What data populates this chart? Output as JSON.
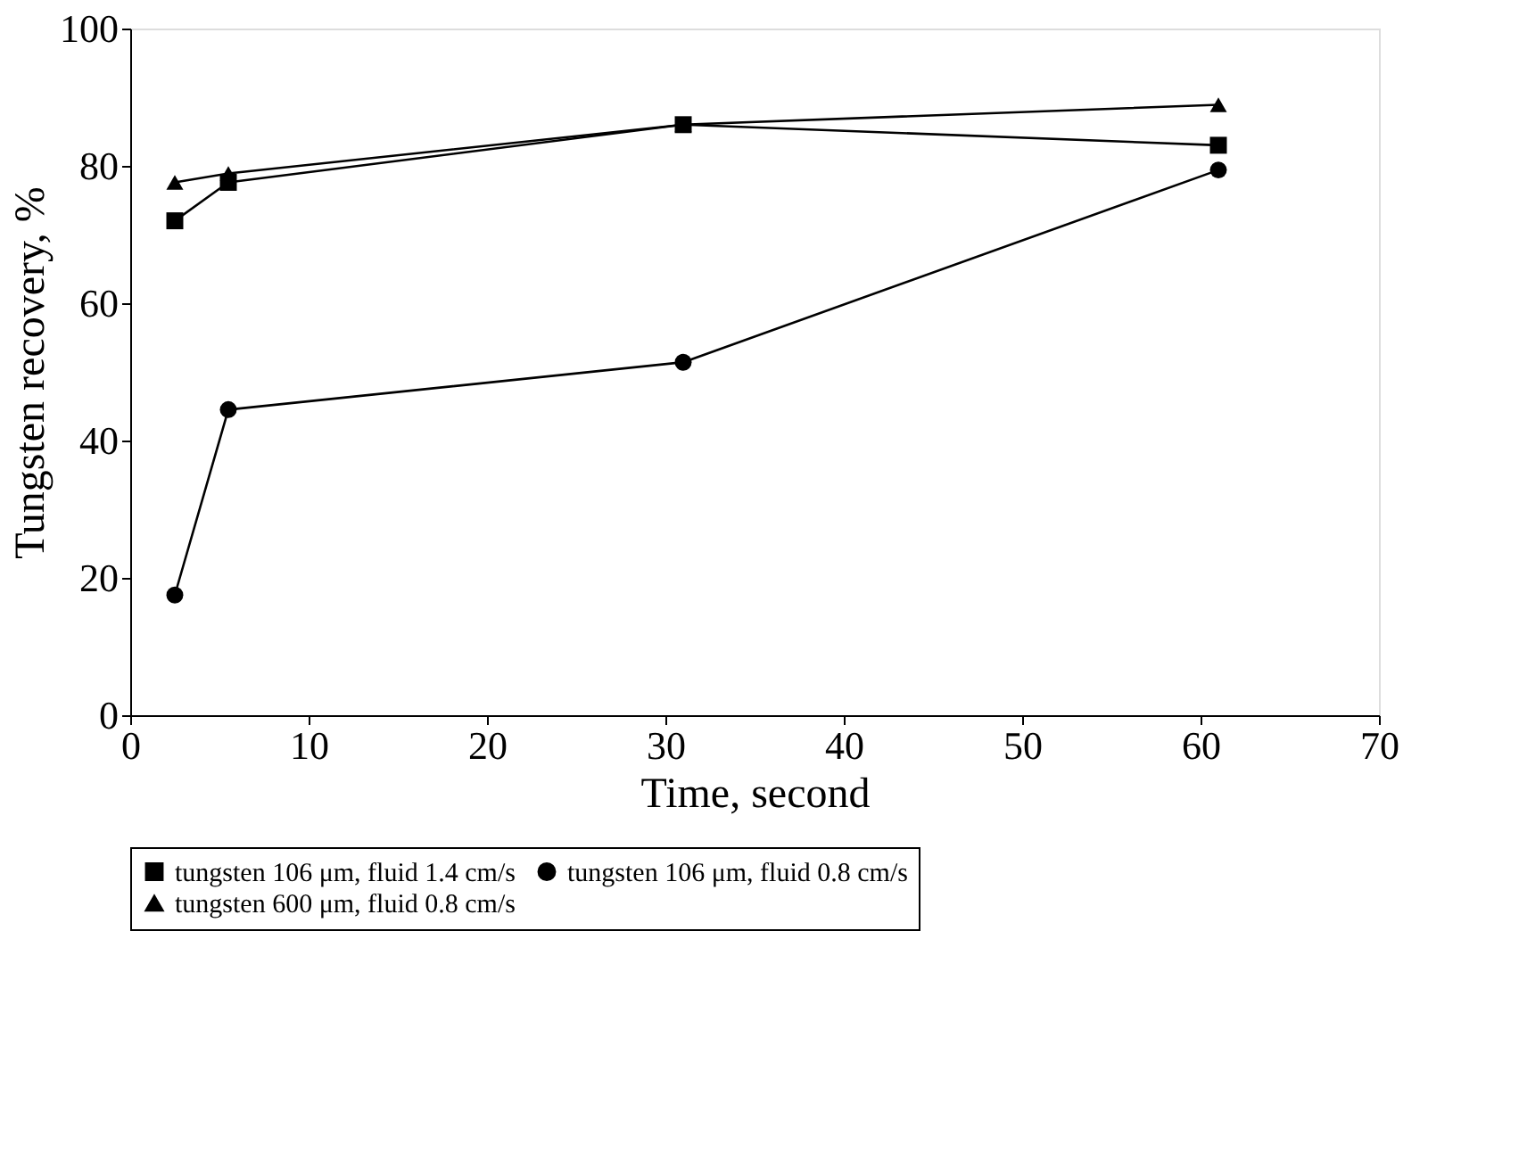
{
  "chart_data": {
    "type": "line",
    "xlabel": "Time, second",
    "ylabel": "Tungsten recovery,  %",
    "x": [
      2.5,
      5.5,
      31,
      61
    ],
    "series": [
      {
        "name": "tungsten 106 μm, fluid 1.4 cm/s",
        "color": "#000000",
        "marker": "square",
        "values": [
          72,
          77.6,
          86,
          83
        ]
      },
      {
        "name": "tungsten 106 μm, fluid 0.8 cm/s",
        "color": "#000000",
        "marker": "circle",
        "values": [
          17.5,
          44.5,
          51.4,
          79.4
        ]
      },
      {
        "name": "tungsten 600 μm, fluid 0.8 cm/s",
        "color": "#000000",
        "marker": "triangle",
        "values": [
          77.6,
          78.9,
          86,
          88.9
        ]
      }
    ],
    "xlim": [
      0,
      70
    ],
    "xticks": [
      0,
      10,
      20,
      30,
      40,
      50,
      60,
      70
    ],
    "ylim": [
      0,
      100
    ],
    "yticks": [
      0,
      20,
      40,
      60,
      80,
      100
    ],
    "grid": false,
    "legend": "bottom",
    "line_style": "solid"
  }
}
